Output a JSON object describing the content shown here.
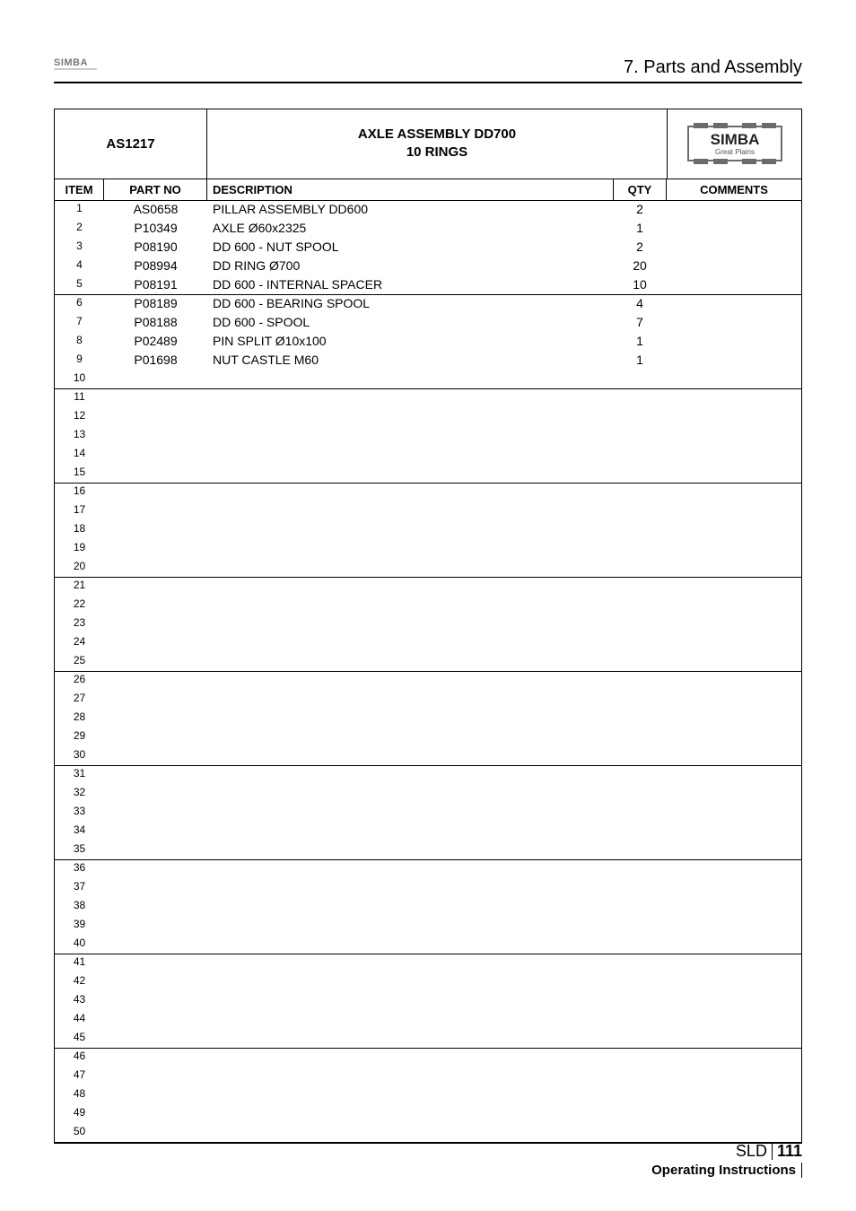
{
  "header": {
    "section_title": "7. Parts and Assembly",
    "small_logo_text": "SIMBA"
  },
  "table": {
    "top": {
      "ref": "AS1217",
      "title": "AXLE ASSEMBLY DD700\n10 RINGS",
      "logo_main": "SIMBA",
      "logo_sub": "Great Plains"
    },
    "columns": {
      "item": "ITEM",
      "part_no": "PART NO",
      "description": "DESCRIPTION",
      "qty": "QTY",
      "comments": "COMMENTS"
    },
    "rows": [
      {
        "item": "1",
        "part": "AS0658",
        "desc": "PILLAR ASSEMBLY DD600",
        "qty": "2"
      },
      {
        "item": "2",
        "part": "P10349",
        "desc": "AXLE Ø60x2325",
        "qty": "1"
      },
      {
        "item": "3",
        "part": "P08190",
        "desc": "DD 600 - NUT SPOOL",
        "qty": "2"
      },
      {
        "item": "4",
        "part": "P08994",
        "desc": "DD RING Ø700",
        "qty": "20"
      },
      {
        "item": "5",
        "part": "P08191",
        "desc": "DD 600 - INTERNAL SPACER",
        "qty": "10"
      },
      {
        "item": "6",
        "part": "P08189",
        "desc": "DD 600 - BEARING SPOOL",
        "qty": "4"
      },
      {
        "item": "7",
        "part": "P08188",
        "desc": "DD 600 - SPOOL",
        "qty": "7"
      },
      {
        "item": "8",
        "part": "P02489",
        "desc": "PIN SPLIT Ø10x100",
        "qty": "1"
      },
      {
        "item": "9",
        "part": "P01698",
        "desc": "NUT CASTLE M60",
        "qty": "1"
      },
      {
        "item": "10"
      },
      {
        "item": "11"
      },
      {
        "item": "12"
      },
      {
        "item": "13"
      },
      {
        "item": "14"
      },
      {
        "item": "15"
      },
      {
        "item": "16"
      },
      {
        "item": "17"
      },
      {
        "item": "18"
      },
      {
        "item": "19"
      },
      {
        "item": "20"
      },
      {
        "item": "21"
      },
      {
        "item": "22"
      },
      {
        "item": "23"
      },
      {
        "item": "24"
      },
      {
        "item": "25"
      },
      {
        "item": "26"
      },
      {
        "item": "27"
      },
      {
        "item": "28"
      },
      {
        "item": "29"
      },
      {
        "item": "30"
      },
      {
        "item": "31"
      },
      {
        "item": "32"
      },
      {
        "item": "33"
      },
      {
        "item": "34"
      },
      {
        "item": "35"
      },
      {
        "item": "36"
      },
      {
        "item": "37"
      },
      {
        "item": "38"
      },
      {
        "item": "39"
      },
      {
        "item": "40"
      },
      {
        "item": "41"
      },
      {
        "item": "42"
      },
      {
        "item": "43"
      },
      {
        "item": "44"
      },
      {
        "item": "45"
      },
      {
        "item": "46"
      },
      {
        "item": "47"
      },
      {
        "item": "48"
      },
      {
        "item": "49"
      },
      {
        "item": "50"
      }
    ],
    "group_boundaries": [
      5,
      10,
      15,
      20,
      25,
      30,
      35,
      40,
      45,
      50
    ]
  },
  "footer": {
    "sld_label": "SLD",
    "page_number": "111",
    "op_inst": "Operating Instructions"
  },
  "style": {
    "colors": {
      "text": "#000000",
      "bg": "#ffffff",
      "logo_small": "#777777",
      "logo_box_border": "#6b6b6b",
      "logo_text": "#222222",
      "logo_sub": "#555555"
    }
  }
}
